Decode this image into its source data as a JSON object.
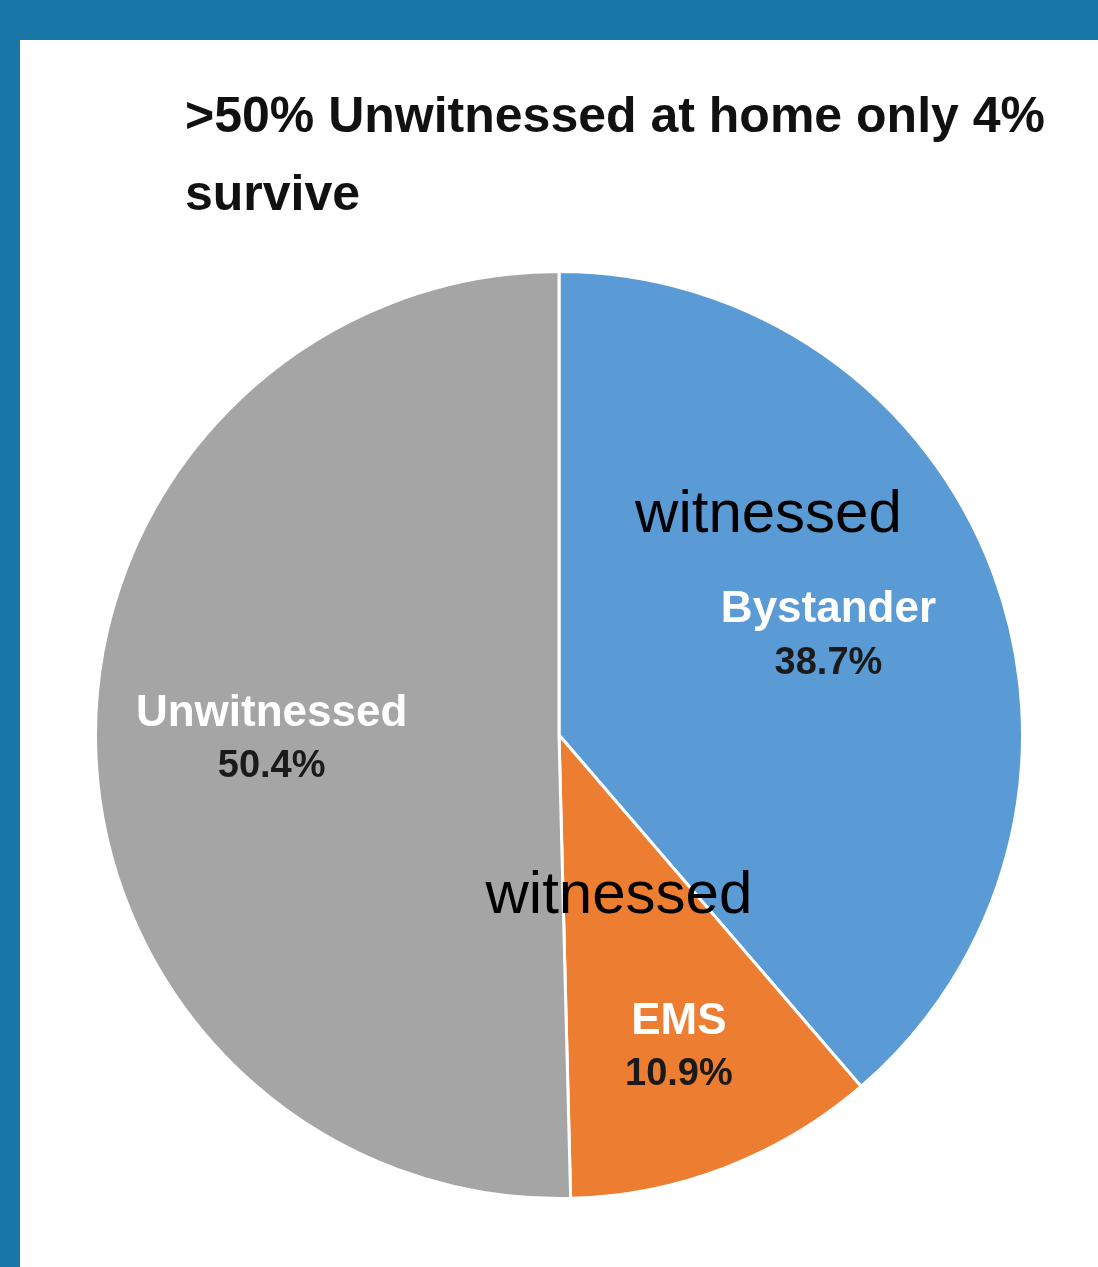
{
  "chart_data": {
    "type": "pie",
    "title": ">50% Unwitnessed at home only 4% survive",
    "categories": [
      "Bystander",
      "EMS",
      "Unwitnessed"
    ],
    "values": [
      38.7,
      10.9,
      50.4
    ],
    "colors": [
      "#5b9bd5",
      "#ed7d31",
      "#a5a5a5"
    ],
    "value_labels": [
      "38.7%",
      "10.9%",
      "50.4%"
    ],
    "annotations": [
      "witnessed",
      "witnessed"
    ],
    "legend": false
  }
}
